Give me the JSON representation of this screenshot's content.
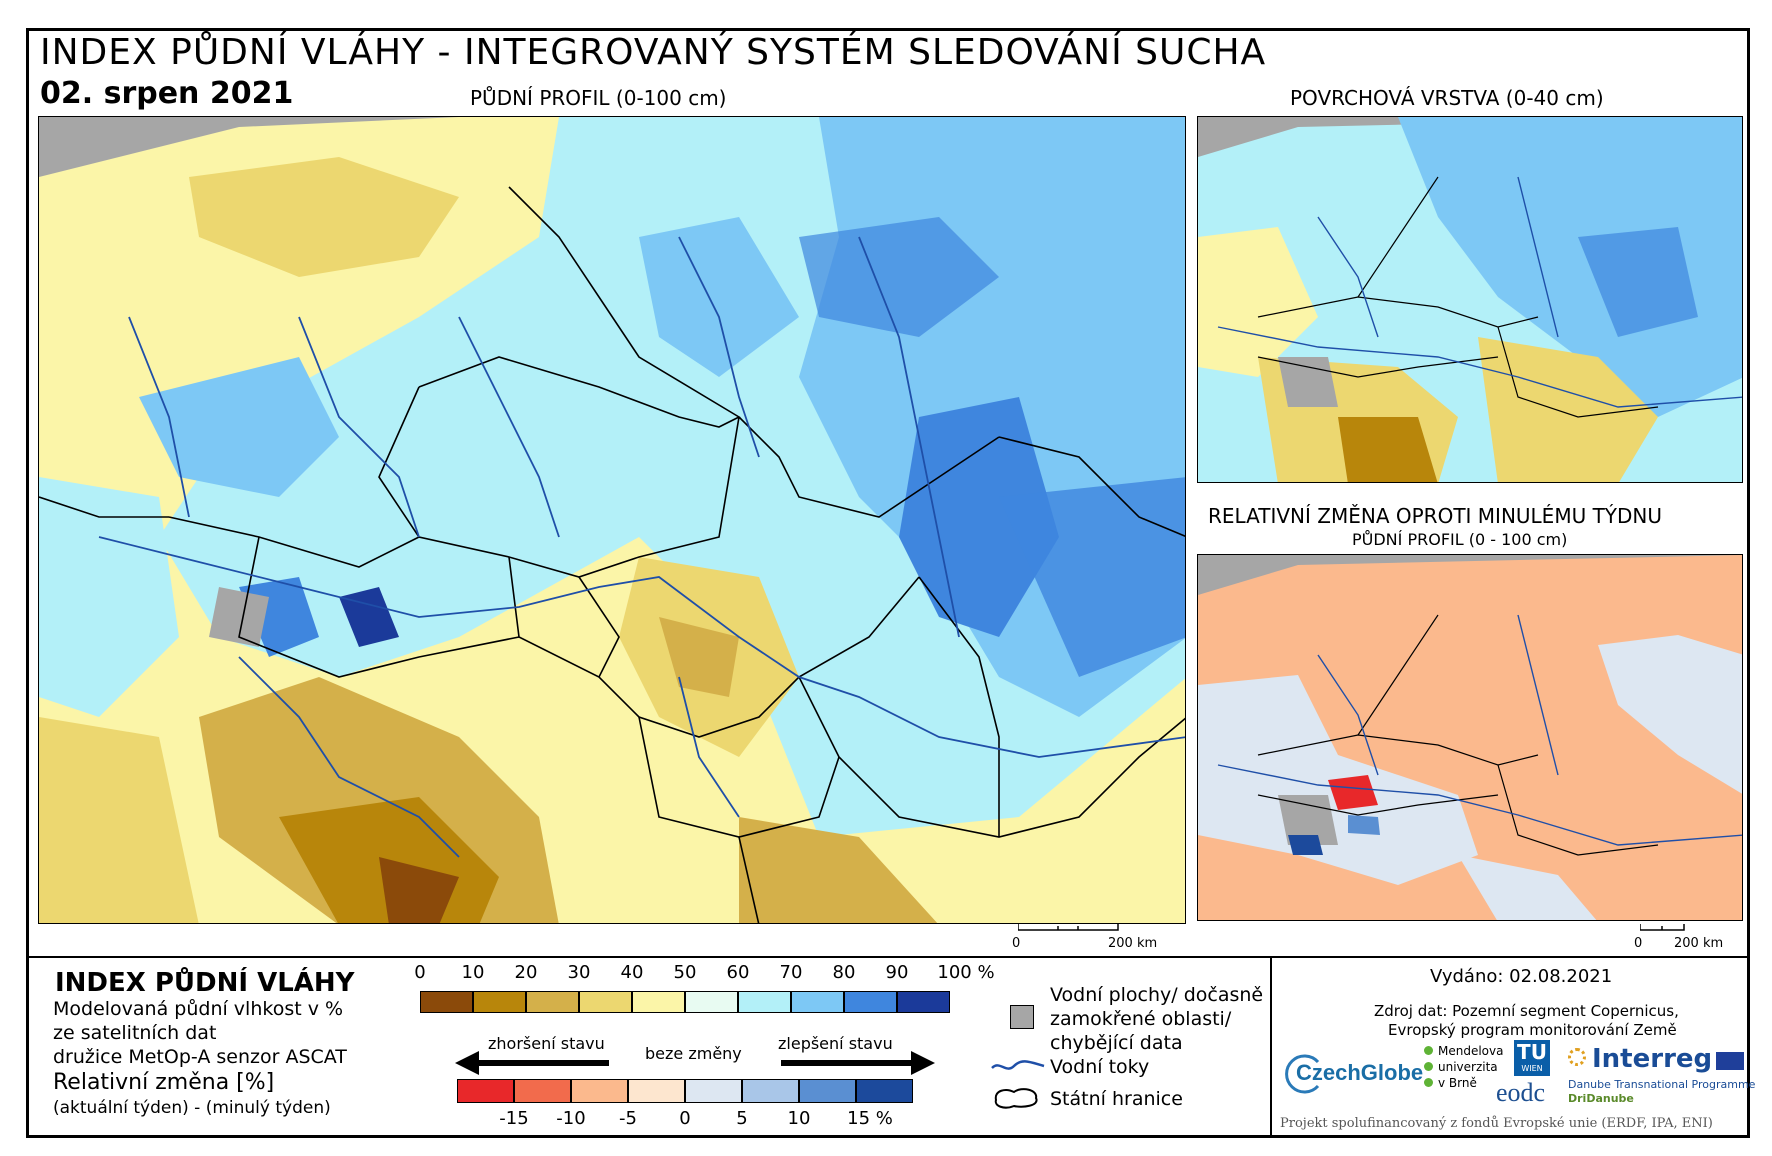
{
  "title": "INDEX PŮDNÍ VLÁHY - INTEGROVANÝ SYSTÉM SLEDOVÁNÍ SUCHA",
  "date": "02. srpen 2021",
  "maps": {
    "main_label": "PŮDNÍ PROFIL (0-100 cm)",
    "top_right_label": "POVRCHOVÁ VRSTVA (0-40 cm)",
    "bottom_right_label": "RELATIVNÍ ZMĚNA OPROTI MINULÉMU TÝDNU",
    "bottom_right_sublabel": "PŮDNÍ PROFIL (0 - 100 cm)",
    "scale_main": {
      "zero": "0",
      "distance": "200 km"
    },
    "scale_small": {
      "zero": "0",
      "distance": "200 km"
    }
  },
  "legend": {
    "title": "INDEX PŮDNÍ VLÁHY",
    "desc1": "Modelovaná půdní vlhkost v %",
    "desc2": "ze satelitních dat",
    "desc3": "družice MetOp-A senzor ASCAT",
    "rel_title": "Relativní změna [%]",
    "rel_desc": "(aktuální týden) - (minulý týden)",
    "moisture_ticks": [
      "0",
      "10",
      "20",
      "30",
      "40",
      "50",
      "60",
      "70",
      "80",
      "90",
      "100 %"
    ],
    "moisture_colors": [
      "#8b4a0a",
      "#b8860b",
      "#d4b04a",
      "#ecd770",
      "#fbf5a8",
      "#e8fbf2",
      "#b3f0f8",
      "#7dc8f5",
      "#3f86de",
      "#1b3a9a"
    ],
    "change_labels": {
      "worse": "zhoršení stavu",
      "none": "beze změny",
      "better": "zlepšení stavu"
    },
    "change_ticks": [
      "-15",
      "-10",
      "-5",
      "0",
      "5",
      "10",
      "15 %"
    ],
    "change_colors": [
      "#e8282a",
      "#f26b4c",
      "#fbb98d",
      "#fde6cf",
      "#dde7f2",
      "#a9c6e8",
      "#5a8fd2",
      "#1c4a9c"
    ],
    "water_label_1": "Vodní plochy/ dočasně",
    "water_label_2": "zamokřené oblasti/",
    "water_label_3": "chybějící data",
    "rivers_label": "Vodní toky",
    "borders_label": "Státní hranice"
  },
  "info": {
    "issued": "Vydáno: 02.08.2021",
    "source1": "Zdroj dat: Pozemní segment Copernicus,",
    "source2": "Evropský program monitorování Země",
    "footer": "Projekt spolufinancovaný z fondů Evropské unie (ERDF, IPA, ENI)"
  },
  "logos": {
    "czechglobe": "CzechGlobe",
    "mendelu_1": "Mendelova",
    "mendelu_2": "univerzita",
    "mendelu_3": "v Brně",
    "tu": "TU",
    "tu_sub": "WIEN",
    "eodc": "eodc",
    "interreg": "Interreg",
    "interreg_sub1": "Danube Transnational Programme",
    "interreg_sub2": "DriDanube"
  },
  "colors": {
    "missing_data": "#a6a6a6",
    "river": "#1f4fa8",
    "outside_area": "#a6a6a6"
  }
}
